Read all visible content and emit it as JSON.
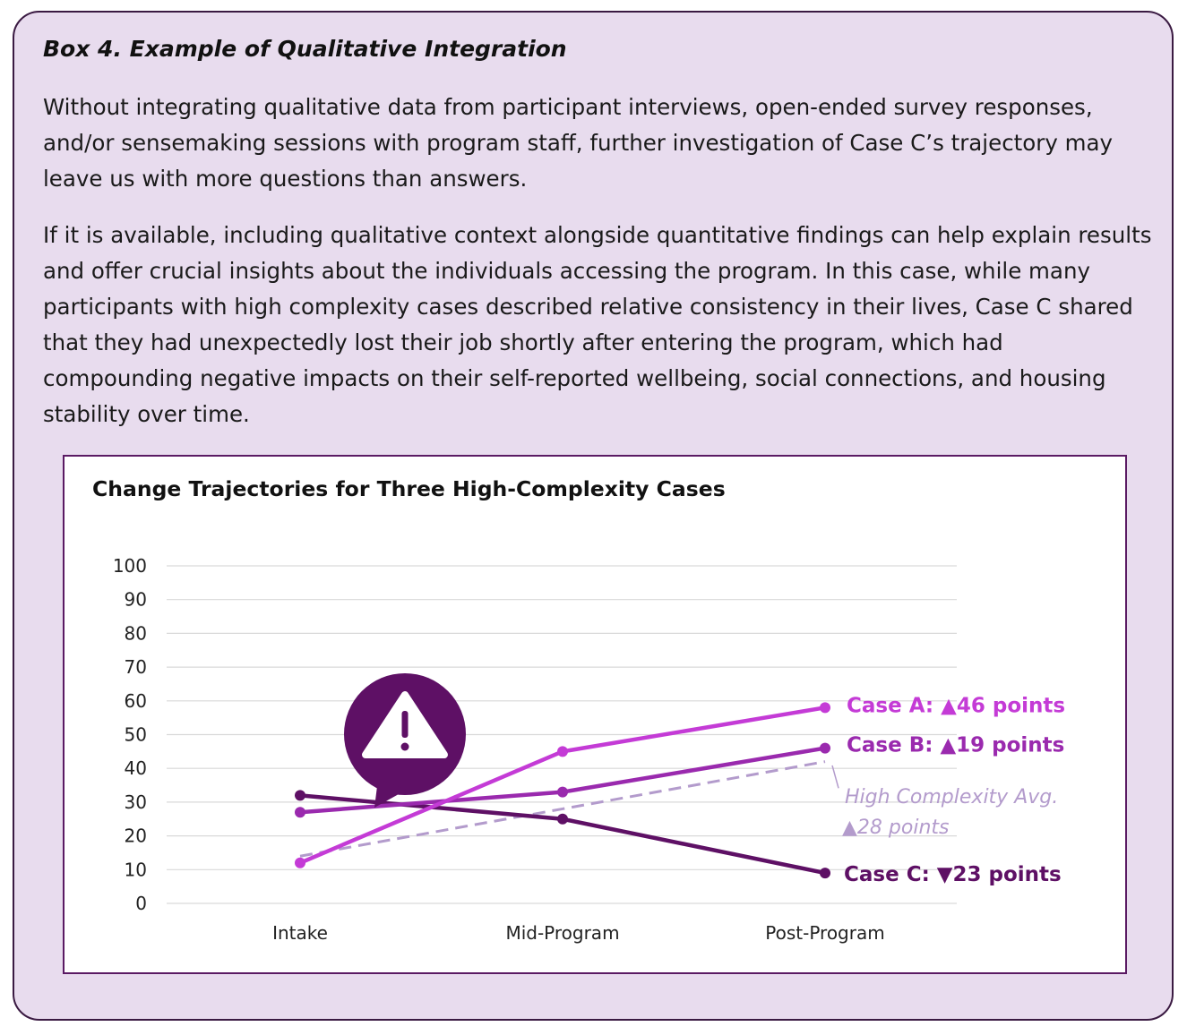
{
  "box": {
    "title": "Box 4. Example of Qualitative Integration",
    "paragraphs": [
      "Without integrating qualitative data from participant interviews, open-ended survey responses, and/or sensemaking sessions with program staff, further investigation of Case C’s trajectory may leave us with more questions than answers.",
      "If it is available, including qualitative context alongside quantitative findings can help explain results and offer crucial insights about the individuals accessing the program. In this case, while many participants with high complexity cases described relative consistency in their lives, Case C shared that they had unexpectedly lost their job shortly after entering the program, which had compounding negative impacts on their self-reported wellbeing, social connections, and housing stability over time."
    ]
  },
  "chart_data": {
    "type": "line",
    "title": "Change Trajectories for Three High-Complexity Cases",
    "categories": [
      "Intake",
      "Mid-Program",
      "Post-Program"
    ],
    "ylim": [
      0,
      100
    ],
    "yticks": [
      0,
      10,
      20,
      30,
      40,
      50,
      60,
      70,
      80,
      90,
      100
    ],
    "grid": true,
    "series": [
      {
        "name": "Case A",
        "values": [
          12,
          45,
          58
        ],
        "color": "#c43bd6",
        "dashed": false,
        "markers": true,
        "label_prefix": "Case A: ",
        "arrow": "▲",
        "label_value": "46 points"
      },
      {
        "name": "Case B",
        "values": [
          27,
          33,
          46
        ],
        "color": "#9a2aae",
        "dashed": false,
        "markers": true,
        "label_prefix": "Case B:  ",
        "arrow": "▲",
        "label_value": "19 points"
      },
      {
        "name": "Case C",
        "values": [
          32,
          25,
          9
        ],
        "color": "#5e1065",
        "dashed": false,
        "markers": true,
        "label_prefix": "Case C:  ",
        "arrow": "▼",
        "label_value": "23 points"
      },
      {
        "name": "High Complexity Avg.",
        "values": [
          14,
          28,
          42
        ],
        "color": "#b39bcc",
        "dashed": true,
        "markers": false,
        "label_prefix": "",
        "arrow": "▲",
        "label_value": "28 points"
      }
    ],
    "annotation": {
      "icon": "warning-icon",
      "glyph": "!"
    }
  }
}
